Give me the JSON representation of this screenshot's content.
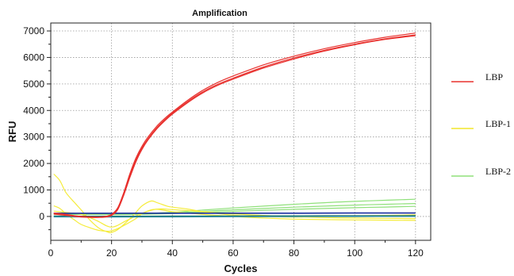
{
  "chart_data": {
    "type": "line",
    "title": "Amplification",
    "xlabel": "Cycles",
    "ylabel": "RFU",
    "xlim": [
      0,
      125
    ],
    "ylim": [
      -900,
      7300
    ],
    "xticks": [
      0,
      20,
      40,
      60,
      80,
      100,
      120
    ],
    "yticks": [
      0,
      1000,
      2000,
      3000,
      4000,
      5000,
      6000,
      7000
    ],
    "grid": true,
    "legend_position": "right",
    "legend": [
      {
        "name": "LBP",
        "color": "#e8302d"
      },
      {
        "name": "LBP-1",
        "color": "#f2e52a"
      },
      {
        "name": "LBP-2",
        "color": "#8fe07a"
      }
    ],
    "series": [
      {
        "group": "LBP",
        "color": "#e8302d",
        "x": [
          1,
          5,
          10,
          15,
          18,
          20,
          22,
          24,
          26,
          28,
          30,
          32,
          35,
          38,
          40,
          45,
          50,
          55,
          60,
          70,
          80,
          90,
          100,
          110,
          120
        ],
        "y": [
          130,
          80,
          0,
          -20,
          0,
          80,
          320,
          900,
          1600,
          2200,
          2650,
          3000,
          3420,
          3750,
          3940,
          4380,
          4760,
          5060,
          5300,
          5720,
          6050,
          6330,
          6560,
          6760,
          6920
        ]
      },
      {
        "group": "LBP",
        "color": "#e8302d",
        "x": [
          1,
          5,
          10,
          15,
          18,
          20,
          22,
          24,
          26,
          28,
          30,
          32,
          35,
          38,
          40,
          45,
          50,
          55,
          60,
          70,
          80,
          90,
          100,
          110,
          120
        ],
        "y": [
          110,
          60,
          -10,
          -30,
          -10,
          60,
          280,
          850,
          1520,
          2120,
          2580,
          2930,
          3360,
          3700,
          3900,
          4330,
          4700,
          4990,
          5220,
          5640,
          5980,
          6270,
          6500,
          6700,
          6850
        ]
      },
      {
        "group": "LBP",
        "color": "#e8302d",
        "x": [
          1,
          5,
          10,
          15,
          18,
          20,
          22,
          24,
          26,
          28,
          30,
          32,
          35,
          38,
          40,
          45,
          50,
          55,
          60,
          70,
          80,
          90,
          100,
          110,
          120
        ],
        "y": [
          90,
          40,
          -20,
          -40,
          -20,
          40,
          250,
          800,
          1460,
          2060,
          2530,
          2890,
          3320,
          3660,
          3860,
          4290,
          4660,
          4950,
          5180,
          5600,
          5940,
          6240,
          6480,
          6680,
          6820
        ]
      },
      {
        "group": "LBP-1",
        "color": "#f5ec3c",
        "x": [
          1,
          3,
          5,
          8,
          10,
          13,
          16,
          19,
          20,
          22,
          25,
          28,
          30,
          33,
          35,
          38,
          40,
          45,
          50,
          60,
          70,
          80,
          90,
          100,
          110,
          120
        ],
        "y": [
          1600,
          1350,
          900,
          500,
          250,
          -150,
          -450,
          -600,
          -600,
          -500,
          -200,
          150,
          400,
          580,
          520,
          400,
          350,
          280,
          180,
          50,
          0,
          -20,
          0,
          20,
          40,
          60
        ]
      },
      {
        "group": "LBP-1",
        "color": "#f5ec3c",
        "x": [
          1,
          3,
          5,
          8,
          10,
          13,
          16,
          19,
          20,
          22,
          25,
          28,
          30,
          33,
          35,
          38,
          40,
          45,
          50,
          60,
          70,
          80,
          90,
          100,
          110,
          120
        ],
        "y": [
          400,
          300,
          100,
          -150,
          -300,
          -430,
          -530,
          -560,
          -540,
          -460,
          -280,
          -80,
          100,
          250,
          270,
          220,
          180,
          130,
          80,
          0,
          -60,
          -100,
          -120,
          -130,
          -140,
          -150
        ]
      },
      {
        "group": "LBP-1",
        "color": "#f5ec3c",
        "x": [
          1,
          5,
          10,
          15,
          20,
          25,
          30,
          35,
          40,
          50,
          60,
          70,
          80,
          90,
          100,
          110,
          120
        ],
        "y": [
          200,
          150,
          80,
          -150,
          -400,
          -150,
          120,
          280,
          260,
          180,
          100,
          40,
          -10,
          -40,
          -60,
          -70,
          -80
        ]
      },
      {
        "group": "LBP-2",
        "color": "#8fe07a",
        "x": [
          1,
          10,
          20,
          30,
          40,
          50,
          60,
          70,
          80,
          90,
          100,
          110,
          120
        ],
        "y": [
          120,
          110,
          105,
          110,
          160,
          240,
          320,
          390,
          460,
          520,
          570,
          610,
          650
        ]
      },
      {
        "group": "LBP-2",
        "color": "#8fe07a",
        "x": [
          1,
          10,
          20,
          30,
          40,
          50,
          60,
          70,
          80,
          90,
          100,
          110,
          120
        ],
        "y": [
          100,
          95,
          90,
          95,
          130,
          190,
          250,
          300,
          350,
          390,
          430,
          460,
          490
        ]
      },
      {
        "group": "LBP-2",
        "color": "#8fe07a",
        "x": [
          1,
          10,
          20,
          30,
          40,
          50,
          60,
          70,
          80,
          90,
          100,
          110,
          120
        ],
        "y": [
          80,
          75,
          70,
          80,
          110,
          150,
          190,
          230,
          270,
          300,
          330,
          355,
          380
        ]
      },
      {
        "group": "baseline",
        "color": "#1a2fa0",
        "x": [
          1,
          20,
          40,
          60,
          80,
          100,
          120
        ],
        "y": [
          120,
          120,
          125,
          125,
          125,
          128,
          130
        ]
      },
      {
        "group": "baseline",
        "color": "#126a55",
        "x": [
          1,
          20,
          40,
          60,
          80,
          100,
          120
        ],
        "y": [
          10,
          5,
          10,
          15,
          20,
          22,
          25
        ]
      },
      {
        "group": "baseline",
        "color": "#2a8aa0",
        "x": [
          1,
          20,
          40,
          60,
          80,
          100,
          120
        ],
        "y": [
          -10,
          -15,
          -10,
          -5,
          0,
          5,
          8
        ]
      }
    ]
  }
}
